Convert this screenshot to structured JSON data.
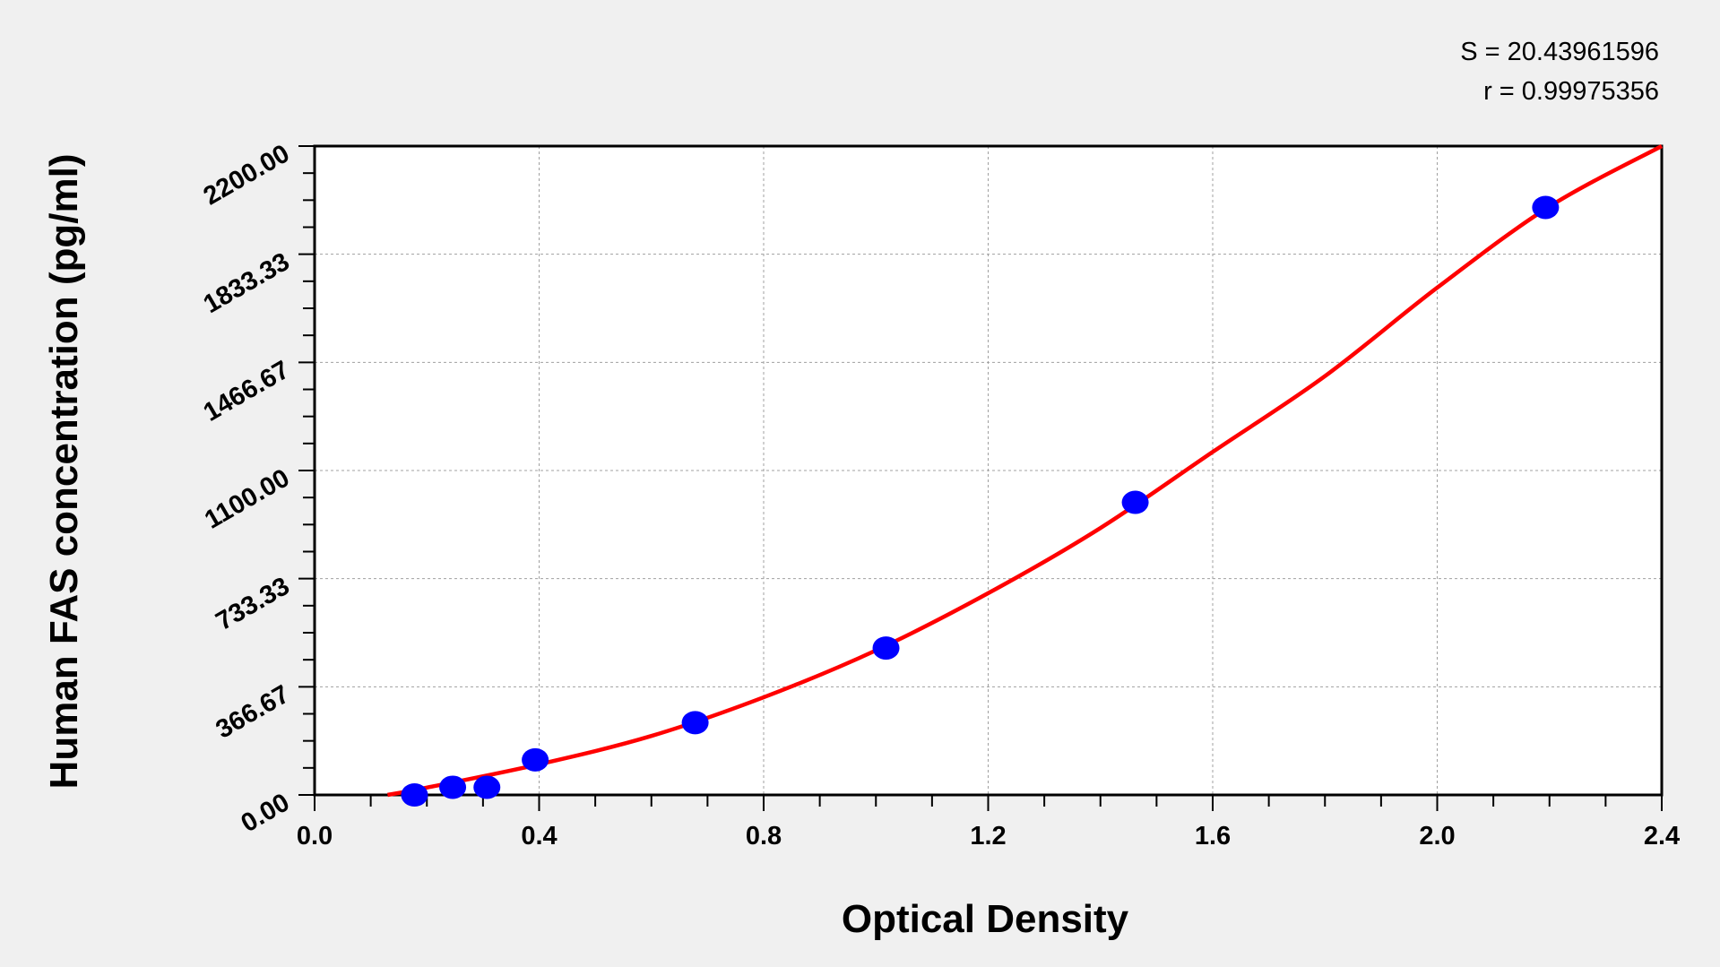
{
  "chart_data": {
    "type": "scatter",
    "xlabel": "Optical Density",
    "ylabel": "Human FAS concentration (pg/ml)",
    "xlim": [
      0,
      2.4
    ],
    "ylim": [
      0,
      2200
    ],
    "x_ticks": [
      "0.0",
      "0.4",
      "0.8",
      "1.2",
      "1.6",
      "2.0",
      "2.4"
    ],
    "x_tick_values": [
      0,
      0.4,
      0.8,
      1.2,
      1.6,
      2.0,
      2.4
    ],
    "y_ticks": [
      "0.00",
      "366.67",
      "733.33",
      "1100.00",
      "1466.67",
      "1833.33",
      "2200.00"
    ],
    "y_tick_values": [
      0,
      366.67,
      733.33,
      1100,
      1466.67,
      1833.33,
      2200
    ],
    "grid": true,
    "annotations": [
      "S = 20.43961596",
      "r = 0.99975356"
    ],
    "points": {
      "color": "#0000ff",
      "x": [
        0.178,
        0.246,
        0.307,
        0.393,
        0.678,
        1.018,
        1.462,
        2.193
      ],
      "y": [
        0,
        26,
        26,
        119,
        245,
        498,
        992,
        1992
      ]
    },
    "fit_curve": {
      "color": "#ff0000",
      "x": [
        0.13,
        0.2,
        0.4,
        0.6,
        0.8,
        1.0,
        1.2,
        1.4,
        1.6,
        1.8,
        2.0,
        2.2,
        2.4
      ],
      "y": [
        0,
        25,
        104,
        200,
        331,
        490,
        684,
        905,
        1163,
        1420,
        1720,
        1995,
        2200
      ]
    }
  }
}
